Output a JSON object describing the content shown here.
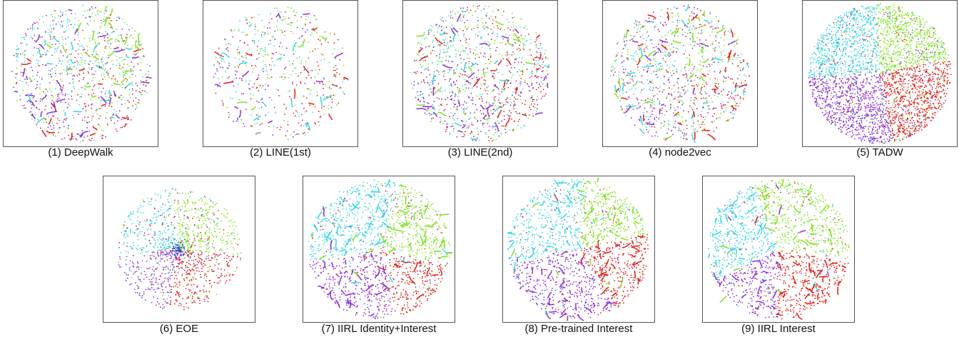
{
  "colors": {
    "red": "#e8190f",
    "purple": "#8a2be2",
    "cyan": "#33d7e8",
    "green": "#7fe31a",
    "blue": "#2a3fd6"
  },
  "chart_data": [
    {
      "type": "scatter",
      "caption": "(1) DeepWalk",
      "layout_style": "mixed"
    },
    {
      "type": "scatter",
      "caption": "(2) LINE(1st)",
      "layout_style": "mixed-sparse"
    },
    {
      "type": "scatter",
      "caption": "(3) LINE(2nd)",
      "layout_style": "mixed"
    },
    {
      "type": "scatter",
      "caption": "(4) node2vec",
      "layout_style": "mixed"
    },
    {
      "type": "scatter",
      "caption": "(5) TADW",
      "layout_style": "clustered-dense"
    },
    {
      "type": "scatter",
      "caption": "(6) EOE",
      "layout_style": "radial"
    },
    {
      "type": "scatter",
      "caption": "(7) IIRL Identity+Interest",
      "layout_style": "clustered"
    },
    {
      "type": "scatter",
      "caption": "(8) Pre-trained Interest",
      "layout_style": "clustered"
    },
    {
      "type": "scatter",
      "caption": "(9) IIRL Interest",
      "layout_style": "clustered"
    }
  ]
}
